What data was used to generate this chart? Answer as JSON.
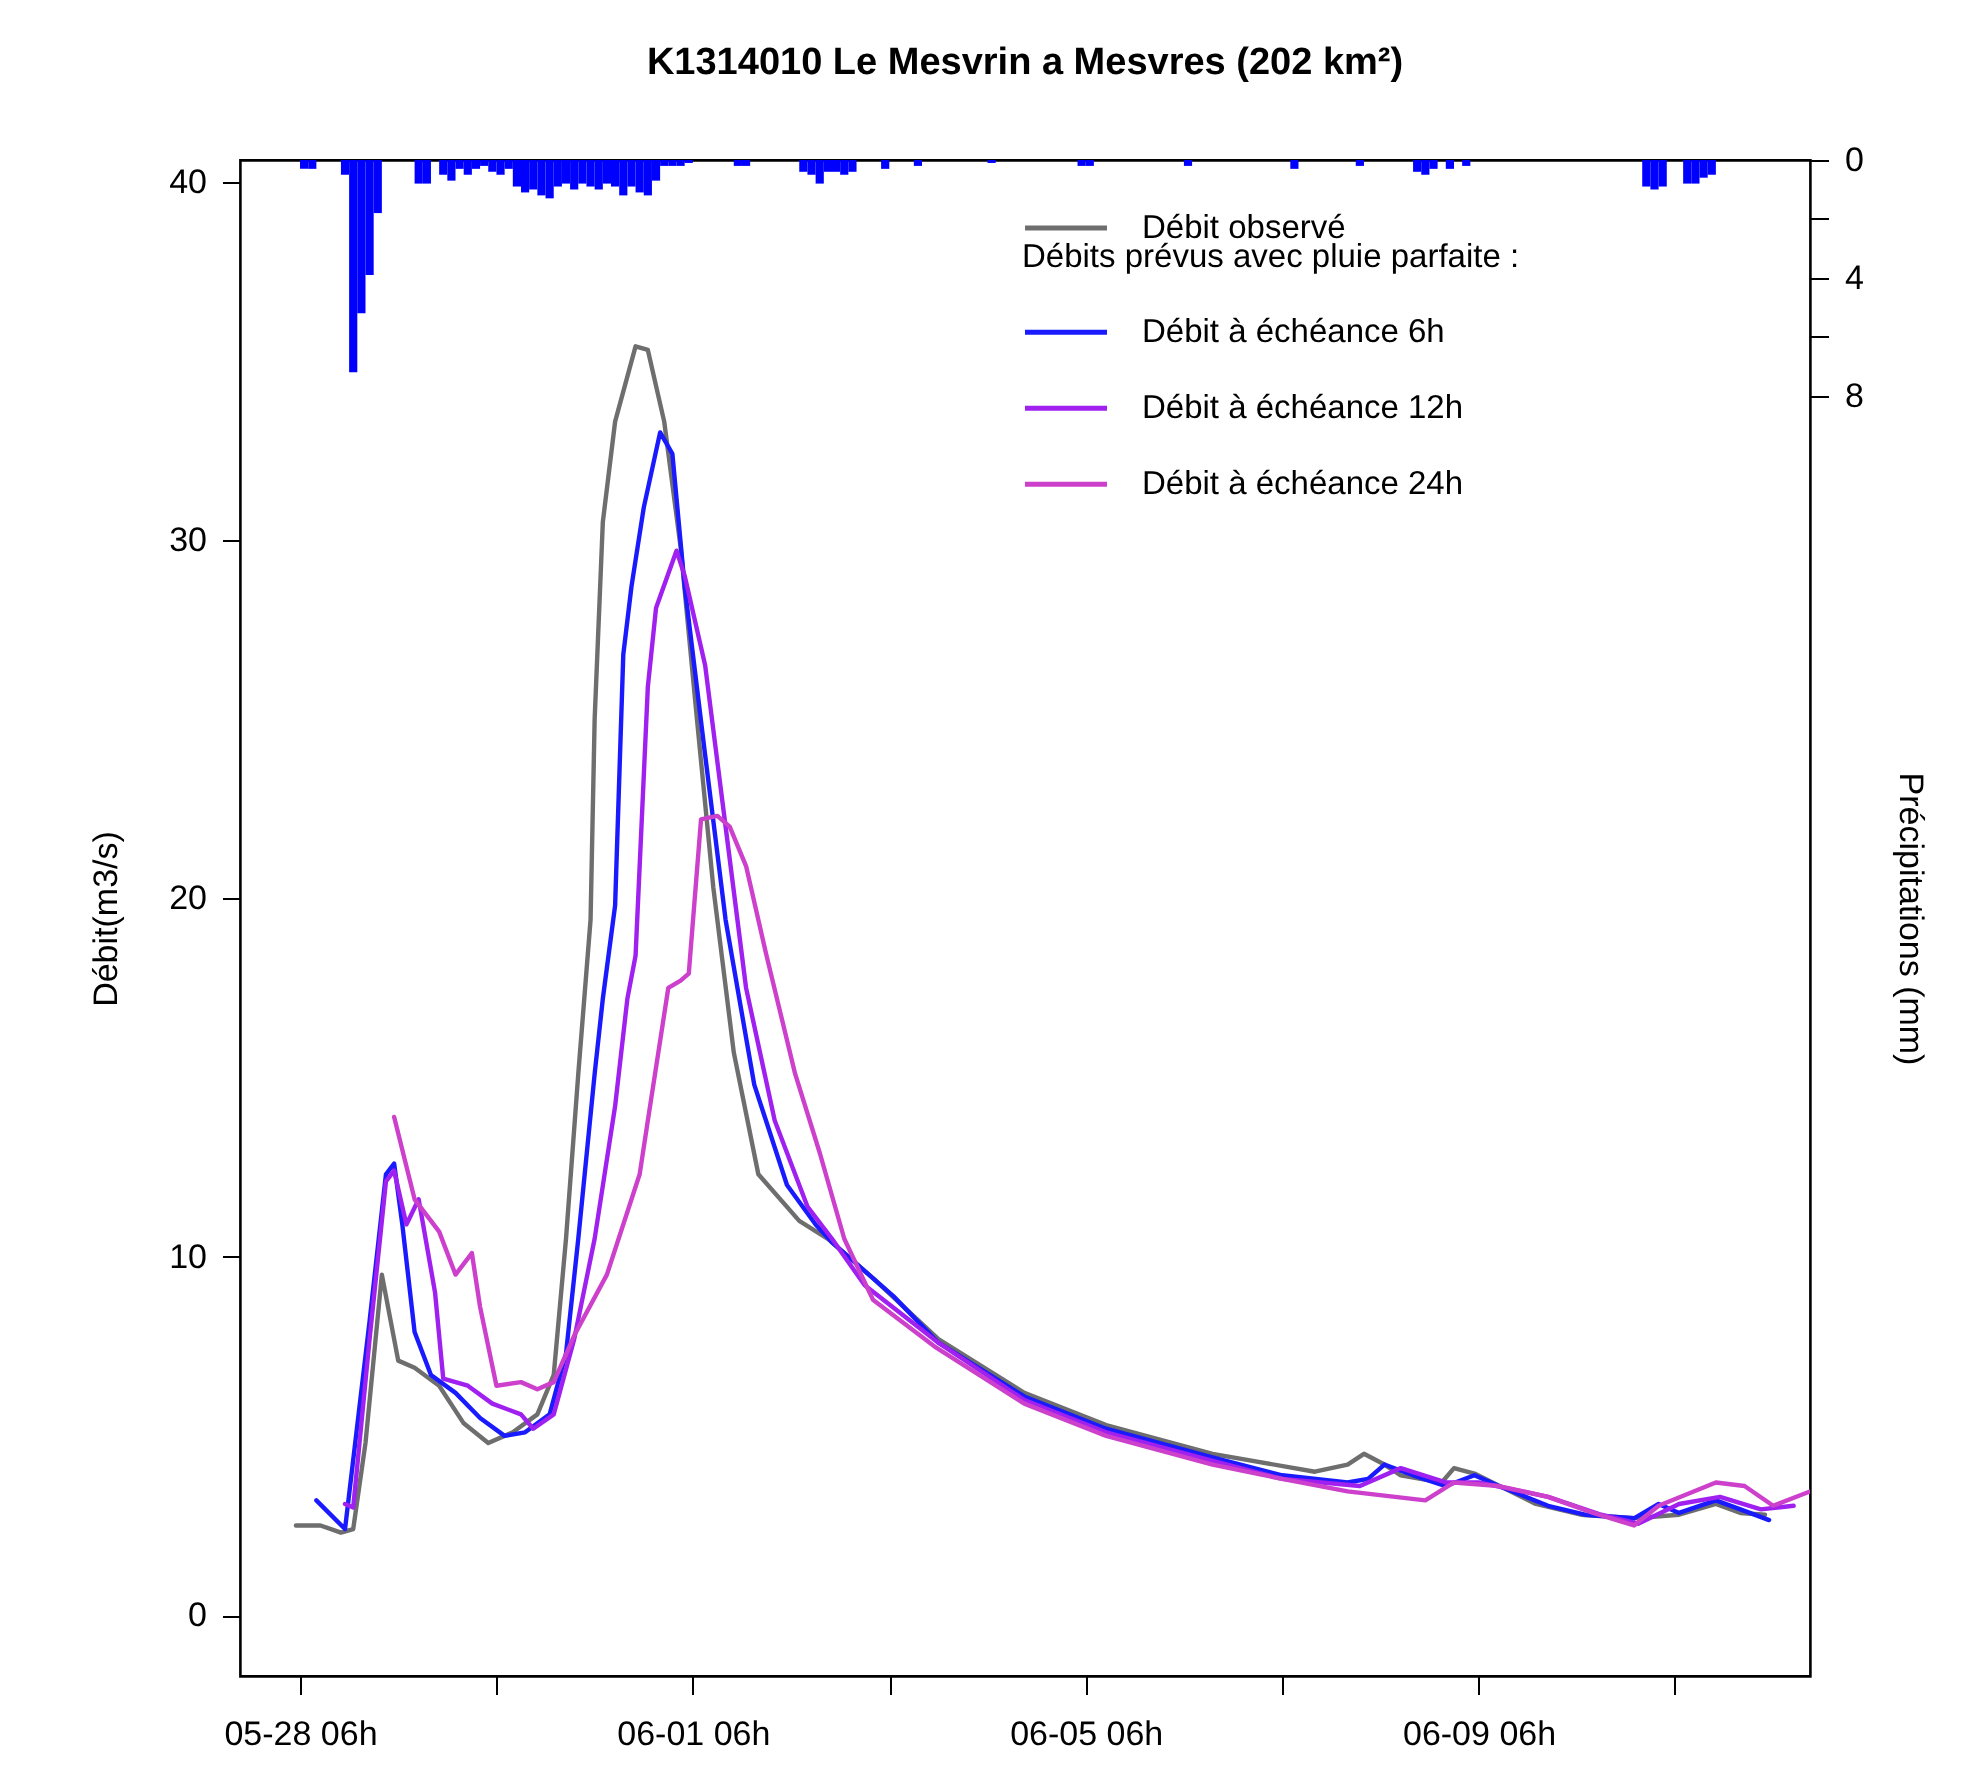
{
  "chart_data": {
    "type": "line",
    "title": "K1314010  Le Mesvrin a Mesvres  (202 km²)",
    "ylabel": "Débit(m3/s)",
    "y2label": "Précipitations (mm)",
    "legend_title": "Débits prévus avec pluie parfaite :",
    "xlim": [
      "--05-27T15:20",
      "--06-12T15:00"
    ],
    "xticks": [
      {
        "value": "--05-28T06:00",
        "label": "05-28 06h"
      },
      {
        "value": "--05-30T06:00",
        "label": null
      },
      {
        "value": "--06-01T06:00",
        "label": "06-01 06h"
      },
      {
        "value": "--06-03T06:00",
        "label": null
      },
      {
        "value": "--06-05T06:00",
        "label": "06-05 06h"
      },
      {
        "value": "--06-07T06:00",
        "label": null
      },
      {
        "value": "--06-09T06:00",
        "label": "06-09 06h"
      },
      {
        "value": "--06-11T06:00",
        "label": null
      }
    ],
    "ylim": [
      -1.7,
      40.6
    ],
    "yticks": [
      0,
      10,
      20,
      30,
      40
    ],
    "y2lim": [
      51.4,
      0
    ],
    "y2ticks": [
      0,
      {
        "value": 2,
        "label": null
      },
      4,
      {
        "value": 6,
        "label": null
      },
      8
    ],
    "legend": "top right",
    "grid": false,
    "marker": "none",
    "line_style": "solid",
    "series": [
      {
        "name": "Débit observé",
        "color": "#6e6e6e",
        "x": [
          "--05-28T05:00",
          "--05-28T11:00",
          "--05-28T16:00",
          "--05-28T19:00",
          "--05-28T22:00",
          "--05-29T02:00",
          "--05-29T06:00",
          "--05-29T10:00",
          "--05-29T16:00",
          "--05-29T22:00",
          "--05-30T04:00",
          "--05-30T10:00",
          "--05-30T16:00",
          "--05-30T20:00",
          "--05-30T23:00",
          "--05-31T02:00",
          "--05-31T05:00",
          "--05-31T06:00",
          "--05-31T08:00",
          "--05-31T11:00",
          "--05-31T16:00",
          "--05-31T19:00",
          "--05-31T23:00",
          "--06-01T03:00",
          "--06-01T07:00",
          "--06-01T11:00",
          "--06-01T16:00",
          "--06-01T22:00",
          "--06-02T08:00",
          "--06-02T15:00",
          "--06-03T02:00",
          "--06-03T18:00",
          "--06-04T15:00",
          "--06-05T11:00",
          "--06-06T13:00",
          "--06-07T14:00",
          "--06-07T22:00",
          "--06-08T02:00",
          "--06-08T07:00",
          "--06-08T11:00",
          "--06-08T21:00",
          "--06-09T00:00",
          "--06-09T05:00",
          "--06-09T20:00",
          "--06-10T07:00",
          "--06-10T20:00",
          "--06-11T07:00",
          "--06-11T16:00",
          "--06-11T22:00",
          "--06-12T04:00"
        ],
        "values": [
          2.5,
          2.5,
          2.3,
          2.4,
          4.8,
          9.5,
          7.1,
          6.9,
          6.4,
          5.35,
          4.8,
          5.1,
          5.6,
          6.7,
          10.5,
          15.1,
          19.4,
          25.0,
          30.5,
          33.3,
          35.4,
          35.3,
          33.3,
          29.8,
          25.0,
          20.3,
          15.7,
          12.3,
          11.0,
          10.5,
          9.4,
          7.7,
          6.2,
          5.3,
          4.5,
          4.0,
          4.2,
          4.5,
          4.2,
          3.9,
          3.7,
          4.1,
          3.95,
          3.1,
          2.8,
          2.7,
          2.8,
          3.1,
          2.85,
          2.8
        ]
      },
      {
        "name": "Débit à échéance 6h",
        "color": "#1a1aff",
        "x": [
          "--05-28T10:00",
          "--05-28T17:00",
          "--05-28T23:00",
          "--05-29T03:00",
          "--05-29T05:00",
          "--05-29T07:00",
          "--05-29T10:00",
          "--05-29T14:00",
          "--05-29T20:00",
          "--05-30T02:00",
          "--05-30T08:00",
          "--05-30T13:00",
          "--05-30T19:00",
          "--05-30T23:00",
          "--05-31T02:00",
          "--05-31T06:00",
          "--05-31T08:00",
          "--05-31T11:00",
          "--05-31T13:00",
          "--05-31T15:00",
          "--05-31T18:00",
          "--05-31T22:00",
          "--06-01T01:00",
          "--06-01T04:00",
          "--06-01T09:00",
          "--06-01T14:00",
          "--06-01T21:00",
          "--06-02T05:00",
          "--06-02T12:00",
          "--06-02T16:00",
          "--06-03T07:00",
          "--06-03T18:00",
          "--06-04T15:00",
          "--06-05T11:00",
          "--06-06T13:00",
          "--06-07T06:00",
          "--06-07T22:00",
          "--06-08T03:00",
          "--06-08T07:00",
          "--06-08T14:00",
          "--06-08T22:00",
          "--06-09T05:00",
          "--06-09T11:00",
          "--06-09T23:00",
          "--06-10T08:00",
          "--06-10T20:00",
          "--06-11T02:00",
          "--06-11T07:00",
          "--06-11T16:00",
          "--06-11T22:00",
          "--06-12T05:00"
        ],
        "values": [
          3.2,
          2.4,
          8.2,
          12.3,
          12.6,
          10.9,
          7.9,
          6.7,
          6.2,
          5.5,
          5.0,
          5.1,
          5.6,
          7.3,
          10.5,
          15.1,
          17.2,
          19.8,
          26.8,
          28.7,
          30.9,
          33.0,
          32.4,
          28.7,
          24.0,
          19.4,
          14.8,
          12.0,
          10.9,
          10.4,
          8.9,
          7.6,
          6.1,
          5.2,
          4.4,
          3.9,
          3.7,
          3.8,
          4.2,
          3.9,
          3.6,
          3.9,
          3.6,
          3.05,
          2.8,
          2.7,
          3.1,
          2.85,
          3.2,
          2.95,
          2.65
        ]
      },
      {
        "name": "Débit à échéance 12h",
        "color": "#a020f0",
        "x": [
          "--05-28T17:00",
          "--05-28T19:00",
          "--05-28T23:00",
          "--05-29T03:00",
          "--05-29T05:00",
          "--05-29T08:00",
          "--05-29T11:00",
          "--05-29T15:00",
          "--05-29T17:00",
          "--05-29T23:00",
          "--05-30T05:00",
          "--05-30T12:00",
          "--05-30T15:00",
          "--05-30T20:00",
          "--05-31T01:00",
          "--05-31T06:00",
          "--05-31T11:00",
          "--05-31T14:00",
          "--05-31T16:00",
          "--05-31T19:00",
          "--05-31T21:00",
          "--06-01T02:00",
          "--06-01T04:00",
          "--06-01T09:00",
          "--06-01T14:00",
          "--06-01T19:00",
          "--06-02T02:00",
          "--06-02T10:00",
          "--06-02T16:00",
          "--06-03T00:00",
          "--06-03T18:00",
          "--06-04T15:00",
          "--06-05T11:00",
          "--06-06T13:00",
          "--06-07T06:00",
          "--06-08T01:00",
          "--06-08T11:00",
          "--06-08T22:00",
          "--06-09T06:00",
          "--06-09T23:00",
          "--06-10T12:00",
          "--06-10T21:00",
          "--06-11T07:00",
          "--06-11T17:00",
          "--06-12T03:00",
          "--06-12T11:00"
        ],
        "values": [
          3.1,
          3.0,
          7.7,
          12.1,
          12.4,
          10.9,
          11.6,
          9.0,
          6.6,
          6.4,
          5.9,
          5.6,
          5.2,
          5.6,
          7.7,
          10.5,
          14.2,
          17.2,
          18.4,
          25.9,
          28.1,
          29.7,
          29.0,
          26.5,
          22.0,
          17.5,
          13.8,
          11.4,
          10.5,
          9.2,
          7.6,
          6.0,
          5.1,
          4.3,
          3.8,
          3.6,
          4.1,
          3.7,
          3.7,
          3.3,
          2.8,
          2.55,
          3.1,
          3.3,
          2.95,
          3.05
        ]
      },
      {
        "name": "Débit à échéance 24h",
        "color": "#cc40cc",
        "x": [
          "--05-29T05:00",
          "--05-29T10:00",
          "--05-29T16:00",
          "--05-29T20:00",
          "--05-30T00:00",
          "--05-30T02:00",
          "--05-30T06:00",
          "--05-30T12:00",
          "--05-30T16:00",
          "--05-30T20:00",
          "--05-31T01:00",
          "--05-31T09:00",
          "--05-31T17:00",
          "--05-31T19:00",
          "--06-01T00:00",
          "--06-01T03:00",
          "--06-01T05:00",
          "--06-01T08:00",
          "--06-01T12:00",
          "--06-01T15:00",
          "--06-01T19:00",
          "--06-02T00:00",
          "--06-02T07:00",
          "--06-02T13:00",
          "--06-02T19:00",
          "--06-03T02:00",
          "--06-03T17:00",
          "--06-04T15:00",
          "--06-05T11:00",
          "--06-06T13:00",
          "--06-07T06:00",
          "--06-07T22:00",
          "--06-08T17:00",
          "--06-09T00:00",
          "--06-09T11:00",
          "--06-09T23:00",
          "--06-10T10:00",
          "--06-10T20:00",
          "--06-11T02:00",
          "--06-11T16:00",
          "--06-11T23:00",
          "--06-12T06:00",
          "--06-12T15:00"
        ],
        "values": [
          13.9,
          11.6,
          10.7,
          9.5,
          10.1,
          8.6,
          6.4,
          6.5,
          6.3,
          6.5,
          7.8,
          9.5,
          12.3,
          13.8,
          17.5,
          17.7,
          17.9,
          22.2,
          22.3,
          22.0,
          20.9,
          18.4,
          15.1,
          12.9,
          10.5,
          8.8,
          7.5,
          5.9,
          5.0,
          4.2,
          3.8,
          3.45,
          3.2,
          3.7,
          3.6,
          3.3,
          2.85,
          2.5,
          3.05,
          3.7,
          3.6,
          3.05,
          3.45
        ]
      },
      {
        "type": "bar",
        "axis": "y2",
        "color": "#0000ff",
        "x": [
          "--05-28T06:00",
          "--05-28T08:00",
          "--05-28T16:00",
          "--05-28T18:00",
          "--05-28T20:00",
          "--05-28T22:00",
          "--05-29T00:00",
          "--05-29T10:00",
          "--05-29T12:00",
          "--05-29T16:00",
          "--05-29T18:00",
          "--05-29T20:00",
          "--05-29T22:00",
          "--05-30T00:00",
          "--05-30T02:00",
          "--05-30T04:00",
          "--05-30T06:00",
          "--05-30T08:00",
          "--05-30T10:00",
          "--05-30T12:00",
          "--05-30T14:00",
          "--05-30T16:00",
          "--05-30T18:00",
          "--05-30T20:00",
          "--05-30T22:00",
          "--05-31T00:00",
          "--05-31T02:00",
          "--05-31T04:00",
          "--05-31T06:00",
          "--05-31T08:00",
          "--05-31T10:00",
          "--05-31T12:00",
          "--05-31T14:00",
          "--05-31T16:00",
          "--05-31T18:00",
          "--05-31T20:00",
          "--05-31T22:00",
          "--06-01T00:00",
          "--06-01T02:00",
          "--06-01T04:00",
          "--06-01T16:00",
          "--06-01T18:00",
          "--06-02T08:00",
          "--06-02T10:00",
          "--06-02T12:00",
          "--06-02T14:00",
          "--06-02T16:00",
          "--06-02T18:00",
          "--06-02T20:00",
          "--06-03T04:00",
          "--06-03T12:00",
          "--06-04T06:00",
          "--06-05T04:00",
          "--06-05T06:00",
          "--06-06T06:00",
          "--06-07T08:00",
          "--06-08T00:00",
          "--06-08T14:00",
          "--06-08T16:00",
          "--06-08T18:00",
          "--06-08T22:00",
          "--06-09T02:00",
          "--06-10T22:00",
          "--06-11T00:00",
          "--06-11T02:00",
          "--06-11T08:00",
          "--06-11T10:00",
          "--06-11T12:00",
          "--06-11T14:00"
        ],
        "values": [
          0.3,
          0.3,
          0.5,
          7.2,
          5.2,
          3.9,
          1.8,
          0.8,
          0.8,
          0.5,
          0.7,
          0.3,
          0.5,
          0.3,
          0.2,
          0.4,
          0.5,
          0.3,
          0.9,
          1.1,
          1.0,
          1.2,
          1.3,
          0.9,
          0.8,
          1.0,
          0.8,
          0.9,
          1.0,
          0.8,
          0.9,
          1.2,
          0.9,
          1.1,
          1.2,
          0.7,
          0.2,
          0.2,
          0.2,
          0.1,
          0.2,
          0.2,
          0.4,
          0.5,
          0.8,
          0.4,
          0.4,
          0.5,
          0.4,
          0.3,
          0.2,
          0.1,
          0.2,
          0.2,
          0.2,
          0.3,
          0.2,
          0.4,
          0.5,
          0.3,
          0.3,
          0.2,
          0.9,
          1.0,
          0.9,
          0.8,
          0.8,
          0.6,
          0.5
        ]
      }
    ]
  }
}
